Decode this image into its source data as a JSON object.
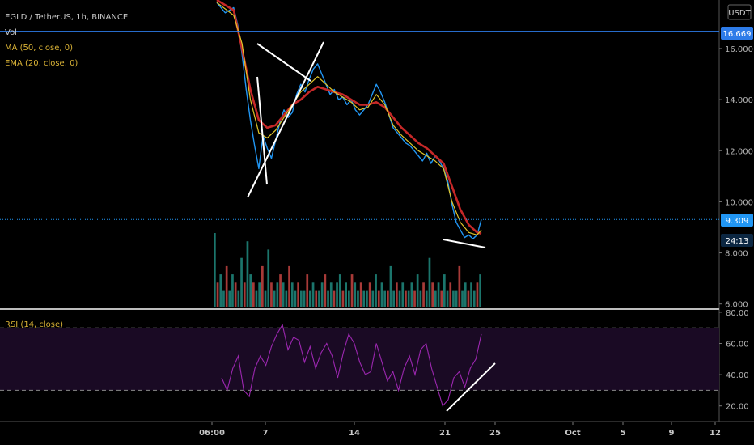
{
  "header": {
    "symbol": "EGLD / TetherUS, 1h, BINANCE",
    "vol_label": "Vol",
    "ma_label": "MA (50, close, 0)",
    "ema_label": "EMA (20, close, 0)",
    "rsi_label": "RSI (14, close)",
    "currency": "USDT"
  },
  "badges": {
    "alert_level": "16.669",
    "last_price": "9.309",
    "countdown": "24:13"
  },
  "colors": {
    "background": "#000000",
    "price": "#2196f3",
    "ema": "#e0c52a",
    "ma": "#c62828",
    "alert_line": "#2d7be8",
    "rsi": "#9c27b0",
    "rsi_band": "#1a0a24",
    "trendline": "#ffffff",
    "vol_up": "#26a69a",
    "vol_down": "#ef5350"
  },
  "chart_data": [
    {
      "type": "line",
      "panel": "price",
      "x_tick_labels": [
        "06:00",
        "7",
        "14",
        "21",
        "25",
        "Oct",
        "5",
        "9",
        "12"
      ],
      "y_tick_labels": [
        "16.000",
        "14.000",
        "12.000",
        "10.000",
        "8.000",
        "6.000"
      ],
      "ylim": [
        5.8,
        17.9
      ],
      "alert_level": 16.669,
      "last_price": 9.309,
      "series": [
        {
          "name": "EGLD / TetherUS",
          "color": "#2196f3",
          "points": [
            [
              0,
              17.8
            ],
            [
              2,
              17.4
            ],
            [
              4,
              17.6
            ],
            [
              5,
              16.9
            ],
            [
              6,
              15.8
            ],
            [
              7,
              14.4
            ],
            [
              8,
              13.2
            ],
            [
              9,
              12.2
            ],
            [
              10,
              11.3
            ],
            [
              11,
              12.6
            ],
            [
              12,
              12.1
            ],
            [
              13,
              11.7
            ],
            [
              14,
              12.4
            ],
            [
              15,
              13.1
            ],
            [
              16,
              13.6
            ],
            [
              17,
              13.3
            ],
            [
              18,
              13.5
            ],
            [
              19,
              14.2
            ],
            [
              20,
              14.6
            ],
            [
              21,
              14.3
            ],
            [
              22,
              14.8
            ],
            [
              23,
              15.2
            ],
            [
              24,
              15.4
            ],
            [
              25,
              15.0
            ],
            [
              26,
              14.6
            ],
            [
              27,
              14.2
            ],
            [
              28,
              14.4
            ],
            [
              29,
              14.0
            ],
            [
              30,
              14.1
            ],
            [
              31,
              13.8
            ],
            [
              32,
              14.0
            ],
            [
              33,
              13.6
            ],
            [
              34,
              13.4
            ],
            [
              35,
              13.6
            ],
            [
              36,
              13.8
            ],
            [
              37,
              14.2
            ],
            [
              38,
              14.6
            ],
            [
              39,
              14.3
            ],
            [
              40,
              13.9
            ],
            [
              41,
              13.4
            ],
            [
              42,
              12.9
            ],
            [
              43,
              12.7
            ],
            [
              44,
              12.5
            ],
            [
              45,
              12.3
            ],
            [
              46,
              12.2
            ],
            [
              47,
              12.0
            ],
            [
              48,
              11.8
            ],
            [
              49,
              11.6
            ],
            [
              50,
              11.9
            ],
            [
              51,
              11.5
            ],
            [
              52,
              11.8
            ],
            [
              53,
              11.6
            ],
            [
              54,
              11.3
            ],
            [
              55,
              10.8
            ],
            [
              56,
              9.9
            ],
            [
              57,
              9.2
            ],
            [
              58,
              8.9
            ],
            [
              59,
              8.6
            ],
            [
              60,
              8.7
            ],
            [
              61,
              8.55
            ],
            [
              62,
              8.7
            ],
            [
              63,
              9.31
            ]
          ]
        },
        {
          "name": "MA (50, close, 0)",
          "color": "#c62828",
          "points": [
            [
              0,
              17.9
            ],
            [
              4,
              17.5
            ],
            [
              6,
              16.0
            ],
            [
              8,
              14.4
            ],
            [
              10,
              13.2
            ],
            [
              12,
              12.9
            ],
            [
              14,
              13.0
            ],
            [
              16,
              13.4
            ],
            [
              18,
              13.8
            ],
            [
              20,
              14.0
            ],
            [
              22,
              14.3
            ],
            [
              24,
              14.5
            ],
            [
              26,
              14.4
            ],
            [
              28,
              14.3
            ],
            [
              30,
              14.2
            ],
            [
              32,
              14.0
            ],
            [
              34,
              13.8
            ],
            [
              36,
              13.8
            ],
            [
              38,
              13.9
            ],
            [
              40,
              13.7
            ],
            [
              42,
              13.3
            ],
            [
              44,
              12.9
            ],
            [
              46,
              12.6
            ],
            [
              48,
              12.3
            ],
            [
              50,
              12.1
            ],
            [
              52,
              11.8
            ],
            [
              54,
              11.5
            ],
            [
              56,
              10.6
            ],
            [
              58,
              9.7
            ],
            [
              60,
              9.1
            ],
            [
              62,
              8.8
            ],
            [
              63,
              8.75
            ]
          ]
        },
        {
          "name": "EMA (20, close, 0)",
          "color": "#e0c52a",
          "points": [
            [
              0,
              17.8
            ],
            [
              4,
              17.3
            ],
            [
              6,
              16.2
            ],
            [
              8,
              14.0
            ],
            [
              10,
              12.7
            ],
            [
              12,
              12.5
            ],
            [
              14,
              12.8
            ],
            [
              16,
              13.3
            ],
            [
              18,
              13.8
            ],
            [
              20,
              14.3
            ],
            [
              22,
              14.6
            ],
            [
              24,
              14.9
            ],
            [
              26,
              14.6
            ],
            [
              28,
              14.3
            ],
            [
              30,
              14.1
            ],
            [
              32,
              13.9
            ],
            [
              34,
              13.6
            ],
            [
              36,
              13.7
            ],
            [
              38,
              14.2
            ],
            [
              40,
              13.8
            ],
            [
              42,
              13.0
            ],
            [
              44,
              12.6
            ],
            [
              46,
              12.3
            ],
            [
              48,
              12.0
            ],
            [
              50,
              11.8
            ],
            [
              52,
              11.6
            ],
            [
              54,
              11.3
            ],
            [
              56,
              10.0
            ],
            [
              58,
              9.2
            ],
            [
              60,
              8.8
            ],
            [
              62,
              8.7
            ],
            [
              63,
              8.9
            ]
          ]
        }
      ]
    },
    {
      "type": "line",
      "panel": "rsi",
      "name": "RSI (14, close)",
      "y_tick_labels": [
        "80.00",
        "60.00",
        "40.00",
        "20.00"
      ],
      "ylim": [
        10,
        81
      ],
      "band": [
        30,
        70
      ],
      "series": [
        {
          "name": "RSI (14, close)",
          "color": "#9c27b0",
          "points": [
            [
              0,
              38
            ],
            [
              2,
              30
            ],
            [
              4,
              44
            ],
            [
              6,
              52
            ],
            [
              8,
              30
            ],
            [
              10,
              26
            ],
            [
              12,
              44
            ],
            [
              14,
              52
            ],
            [
              16,
              46
            ],
            [
              18,
              58
            ],
            [
              20,
              66
            ],
            [
              22,
              72
            ],
            [
              24,
              56
            ],
            [
              26,
              64
            ],
            [
              28,
              62
            ],
            [
              30,
              48
            ],
            [
              32,
              58
            ],
            [
              34,
              44
            ],
            [
              36,
              54
            ],
            [
              38,
              60
            ],
            [
              40,
              52
            ],
            [
              42,
              38
            ],
            [
              44,
              54
            ],
            [
              46,
              66
            ],
            [
              48,
              60
            ],
            [
              50,
              48
            ],
            [
              52,
              40
            ],
            [
              54,
              42
            ],
            [
              56,
              60
            ],
            [
              58,
              48
            ],
            [
              60,
              36
            ],
            [
              62,
              42
            ],
            [
              64,
              30
            ],
            [
              66,
              44
            ],
            [
              68,
              52
            ],
            [
              70,
              40
            ],
            [
              72,
              56
            ],
            [
              74,
              60
            ],
            [
              76,
              44
            ],
            [
              78,
              32
            ],
            [
              80,
              20
            ],
            [
              82,
              24
            ],
            [
              84,
              38
            ],
            [
              86,
              42
            ],
            [
              88,
              32
            ],
            [
              90,
              44
            ],
            [
              92,
              50
            ],
            [
              94,
              66
            ]
          ]
        }
      ]
    },
    {
      "type": "bar",
      "panel": "volume",
      "name": "Vol",
      "values": [
        9,
        3,
        4,
        2,
        5,
        2,
        4,
        3,
        2,
        6,
        3,
        8,
        4,
        3,
        2,
        3,
        5,
        2,
        7,
        3,
        2,
        3,
        4,
        3,
        2,
        5,
        3,
        2,
        3,
        2,
        2,
        4,
        2,
        3,
        2,
        2,
        3,
        4,
        2,
        3,
        2,
        3,
        4,
        2,
        3,
        2,
        4,
        3,
        2,
        3,
        2,
        2,
        3,
        2,
        4,
        2,
        3,
        2,
        2,
        5,
        2,
        3,
        2,
        3,
        2,
        2,
        3,
        2,
        4,
        2,
        3,
        2,
        6,
        3,
        2,
        3,
        2,
        4,
        2,
        3,
        2,
        2,
        5,
        2,
        3,
        2,
        3,
        2,
        3,
        4
      ]
    }
  ]
}
